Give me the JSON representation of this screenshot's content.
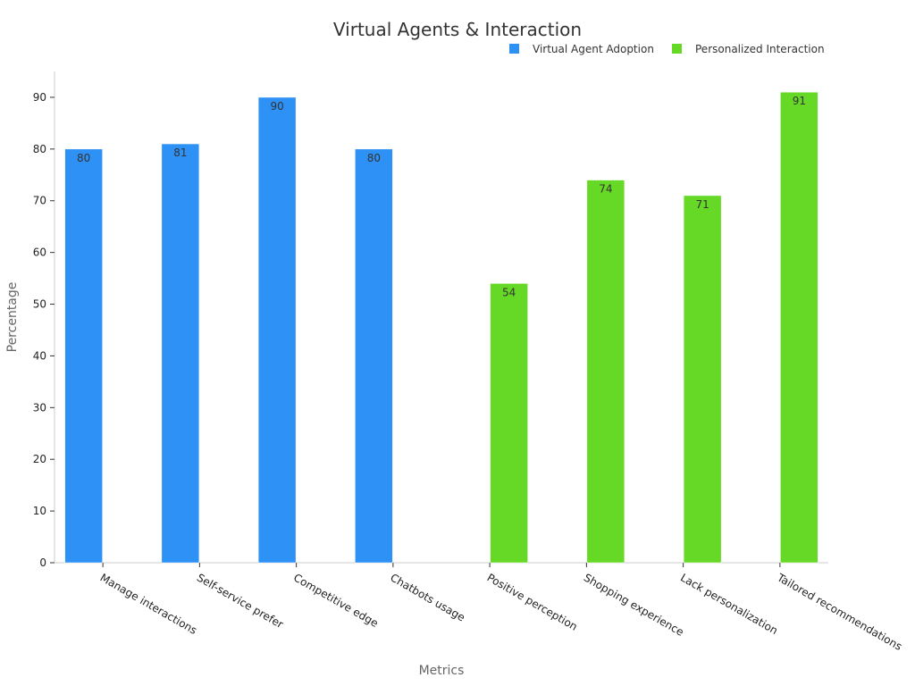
{
  "colors": {
    "series_0": "#2d91f5",
    "series_1": "#66d926",
    "axis": "#cccccc",
    "text": "#333333"
  },
  "chart_data": {
    "type": "bar",
    "title": "Virtual Agents & Interaction",
    "xlabel": "Metrics",
    "ylabel": "Percentage",
    "ylim": [
      0,
      95
    ],
    "yticks": [
      0,
      10,
      20,
      30,
      40,
      50,
      60,
      70,
      80,
      90
    ],
    "grid": false,
    "legend_position": "top-right",
    "categories": [
      "Manage interactions",
      "Self-service prefer",
      "Competitive edge",
      "Chatbots usage",
      "Positive perception",
      "Shopping experience",
      "Lack personalization",
      "Tailored recommendations"
    ],
    "series": [
      {
        "name": "Virtual Agent Adoption",
        "values": [
          80,
          81,
          90,
          80,
          null,
          null,
          null,
          null
        ]
      },
      {
        "name": "Personalized Interaction",
        "values": [
          null,
          null,
          null,
          null,
          54,
          74,
          71,
          91
        ]
      }
    ]
  }
}
